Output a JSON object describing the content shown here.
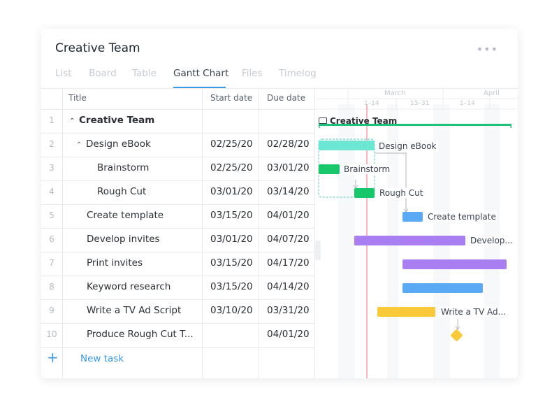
{
  "project": {
    "title": "Creative Team",
    "more_icon": "more-horizontal-icon"
  },
  "tabs": [
    {
      "label": "List",
      "active": false
    },
    {
      "label": "Board",
      "active": false
    },
    {
      "label": "Table",
      "active": false
    },
    {
      "label": "Gantt Chart",
      "active": true
    },
    {
      "label": "Files",
      "active": false
    },
    {
      "label": "Timelog",
      "active": false
    }
  ],
  "columns": {
    "title": "Title",
    "start": "Start date",
    "due": "Due date"
  },
  "rows": [
    {
      "num": "1",
      "title": "Creative Team",
      "start": "",
      "due": ""
    },
    {
      "num": "2",
      "title": "Design eBook",
      "start": "02/25/20",
      "due": "02/28/20"
    },
    {
      "num": "3",
      "title": "Brainstorm",
      "start": "02/25/20",
      "due": "03/01/20"
    },
    {
      "num": "4",
      "title": "Rough Cut",
      "start": "03/01/20",
      "due": "03/14/20"
    },
    {
      "num": "5",
      "title": "Create template",
      "start": "03/15/20",
      "due": "04/01/20"
    },
    {
      "num": "6",
      "title": "Develop invites",
      "start": "03/01/20",
      "due": "04/07/20"
    },
    {
      "num": "7",
      "title": "Print invites",
      "start": "03/15/20",
      "due": "04/17/20"
    },
    {
      "num": "8",
      "title": "Keyword research",
      "start": "03/15/20",
      "due": "04/14/20"
    },
    {
      "num": "9",
      "title": "Write a TV Ad Script",
      "start": "03/10/20",
      "due": "03/31/20"
    },
    {
      "num": "10",
      "title": "Produce Rough Cut T...",
      "start": "",
      "due": "04/01/20"
    }
  ],
  "new_task": {
    "label": "New task"
  },
  "timeline": {
    "months": [
      "March",
      "April"
    ],
    "weeks": [
      "1–14",
      "15–31",
      "1–14"
    ],
    "group_label": "Creative Team",
    "bar_labels": {
      "design": "Design eBook",
      "brainstorm": "Brainstorm",
      "rough": "Rough Cut",
      "template": "Create template",
      "develop": "Develop...",
      "tvad": "Write a TV Ad..."
    },
    "colors": {
      "group": "#1cc27a",
      "design": "#6ee6d4",
      "green": "#18c76a",
      "blue": "#5aa9f5",
      "purple": "#a87ef0",
      "yellow": "#f9c93a",
      "today": "#f2717a"
    }
  }
}
